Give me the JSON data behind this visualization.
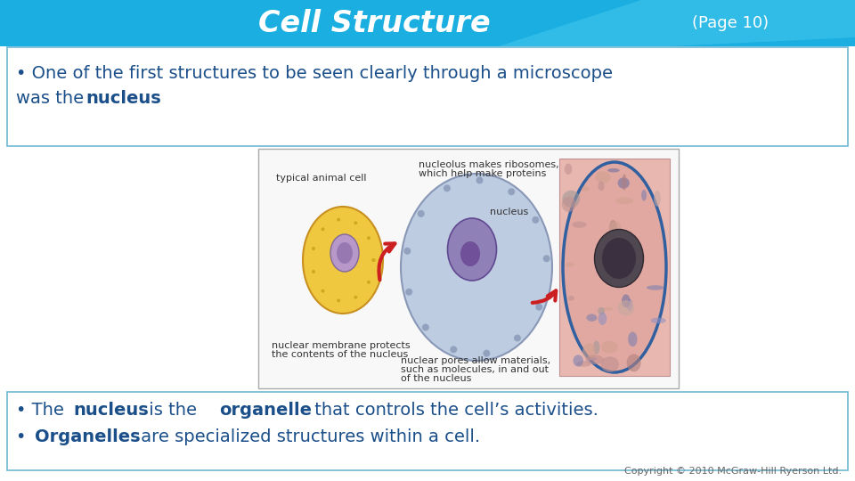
{
  "title": "Cell Structure",
  "page_ref": "(Page 10)",
  "header_color": "#1AAFE0",
  "title_color": "#FFFFFF",
  "page_ref_color": "#FFFFFF",
  "bg_color": "#FFFFFF",
  "box_border_color": "#7BBDD8",
  "box_bg_color": "#FFFFFF",
  "text_color": "#1B4F8A",
  "copyright": "Copyright © 2010 McGraw-Hill Ryerson Ltd.",
  "font_size_title": 24,
  "font_size_pageref": 13,
  "font_size_body": 14,
  "font_size_caption": 8,
  "font_size_copyright": 8
}
